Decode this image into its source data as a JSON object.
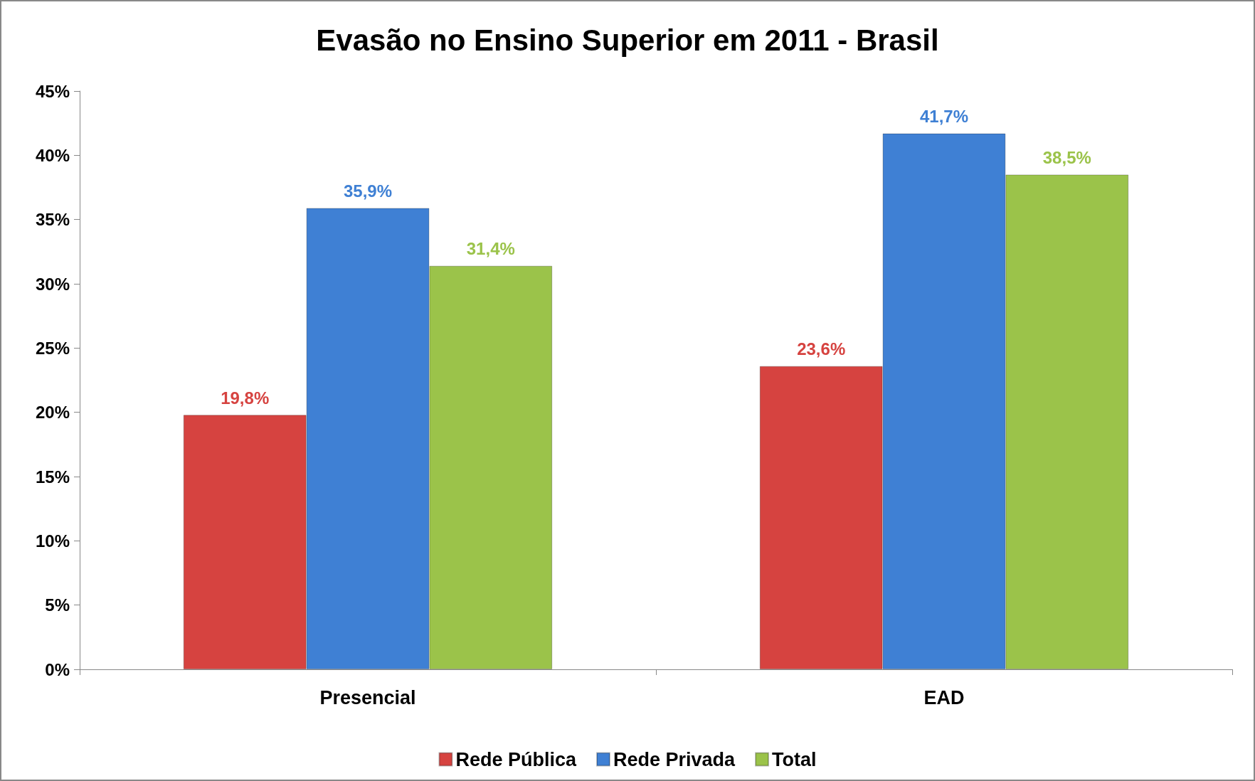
{
  "chart_data": {
    "type": "bar",
    "title": "Evasão no Ensino Superior em 2011 - Brasil",
    "categories": [
      "Presencial",
      "EAD"
    ],
    "series": [
      {
        "name": "Rede Pública",
        "color": "#d64340",
        "values": [
          19.8,
          23.6
        ],
        "value_labels": [
          "19,8%",
          "23,6%"
        ]
      },
      {
        "name": "Rede Privada",
        "color": "#3f80d4",
        "values": [
          35.9,
          41.7
        ],
        "value_labels": [
          "35,9%",
          "41,7%"
        ]
      },
      {
        "name": "Total",
        "color": "#9bc34a",
        "values": [
          31.4,
          38.5
        ],
        "value_labels": [
          "31,4%",
          "38,5%"
        ]
      }
    ],
    "ylim": [
      0,
      45
    ],
    "yticks": [
      {
        "value": 0,
        "label": "0%"
      },
      {
        "value": 5,
        "label": "5%"
      },
      {
        "value": 10,
        "label": "10%"
      },
      {
        "value": 15,
        "label": "15%"
      },
      {
        "value": 20,
        "label": "20%"
      },
      {
        "value": 25,
        "label": "25%"
      },
      {
        "value": 30,
        "label": "30%"
      },
      {
        "value": 35,
        "label": "35%"
      },
      {
        "value": 40,
        "label": "40%"
      },
      {
        "value": 45,
        "label": "45%"
      }
    ],
    "grid": false,
    "legend": "bottom"
  }
}
